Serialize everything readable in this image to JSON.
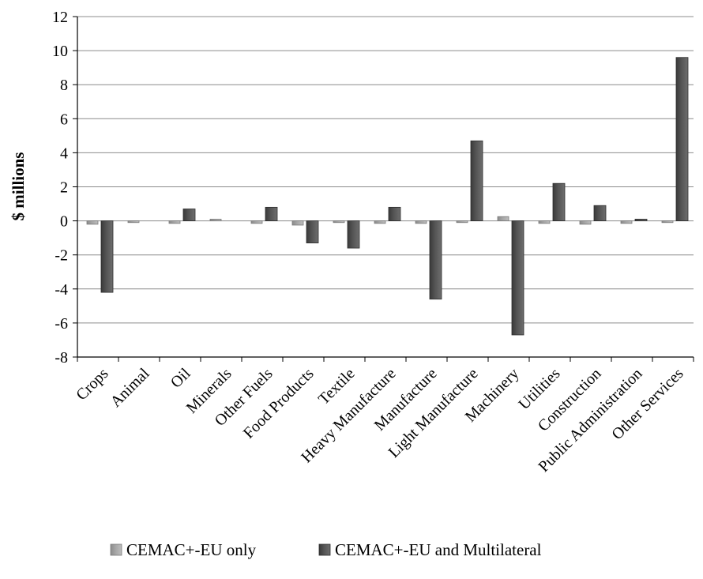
{
  "chart_data": {
    "type": "bar",
    "title": "",
    "xlabel": "",
    "ylabel": "$ millions",
    "ylim": [
      -8,
      12
    ],
    "yticks": [
      -8,
      -6,
      -4,
      -2,
      0,
      2,
      4,
      6,
      8,
      10,
      12
    ],
    "grid": "horizontal",
    "legend_position": "bottom",
    "categories": [
      "Crops",
      "Animal",
      "Oil",
      "Minerals",
      "Other Fuels",
      "Food Products",
      "Textile",
      "Heavy Manufacture",
      "Manufacture",
      "Light Manufacture",
      "Machinery",
      "Utilities",
      "Construction",
      "Public Administration",
      "Other Services"
    ],
    "series": [
      {
        "name": "CEMAC+-EU only",
        "color": "#a6a6a6",
        "values": [
          -0.2,
          -0.1,
          -0.15,
          0.1,
          -0.15,
          -0.25,
          -0.1,
          -0.15,
          -0.15,
          -0.1,
          0.25,
          -0.15,
          -0.2,
          -0.15,
          -0.1
        ]
      },
      {
        "name": "CEMAC+-EU and Multilateral",
        "color": "#555555",
        "values": [
          -4.2,
          0.0,
          0.7,
          0.0,
          0.8,
          -1.3,
          -1.6,
          0.8,
          -4.6,
          4.7,
          -6.7,
          2.2,
          0.9,
          0.1,
          9.6
        ]
      }
    ]
  }
}
